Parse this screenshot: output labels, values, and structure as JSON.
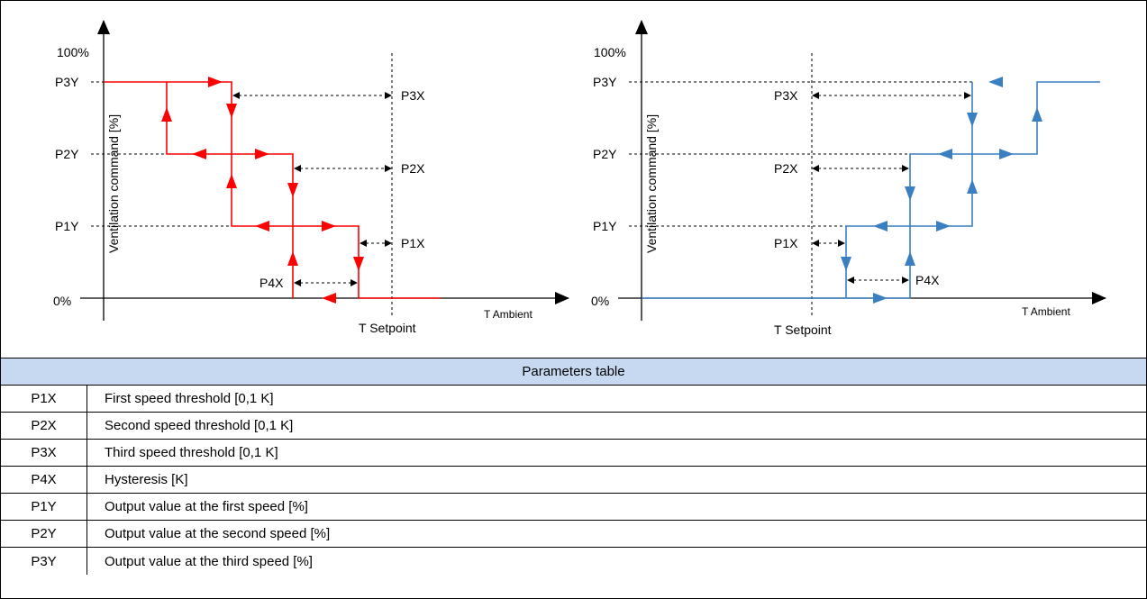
{
  "diagrams": {
    "left": {
      "y_top": "100%",
      "y_zero": "0%",
      "y_axis_title": "Ventilation command [%]",
      "x_axis_title": "T Ambient",
      "setpoint": "T Setpoint",
      "levels": [
        "P3Y",
        "P2Y",
        "P1Y"
      ],
      "x_params": [
        "P3X",
        "P2X",
        "P1X"
      ],
      "hysteresis": "P4X",
      "curve_color": "#ff0000"
    },
    "right": {
      "y_top": "100%",
      "y_zero": "0%",
      "y_axis_title": "Ventilation command [%]",
      "x_axis_title": "T Ambient",
      "setpoint": "T Setpoint",
      "levels": [
        "P3Y",
        "P2Y",
        "P1Y"
      ],
      "x_params": [
        "P3X",
        "P2X",
        "P1X"
      ],
      "hysteresis": "P4X",
      "curve_color": "#3a7fc1"
    }
  },
  "table": {
    "title": "Parameters table",
    "rows": [
      {
        "code": "P1X",
        "desc": "First speed threshold [0,1 K]"
      },
      {
        "code": "P2X",
        "desc": "Second speed threshold [0,1 K]"
      },
      {
        "code": "P3X",
        "desc": "Third speed threshold [0,1 K]"
      },
      {
        "code": "P4X",
        "desc": "Hysteresis [K]"
      },
      {
        "code": "P1Y",
        "desc": "Output value at the first speed [%]"
      },
      {
        "code": "P2Y",
        "desc": "Output value at the second speed [%]"
      },
      {
        "code": "P3Y",
        "desc": "Output value at the third speed [%]"
      }
    ]
  }
}
